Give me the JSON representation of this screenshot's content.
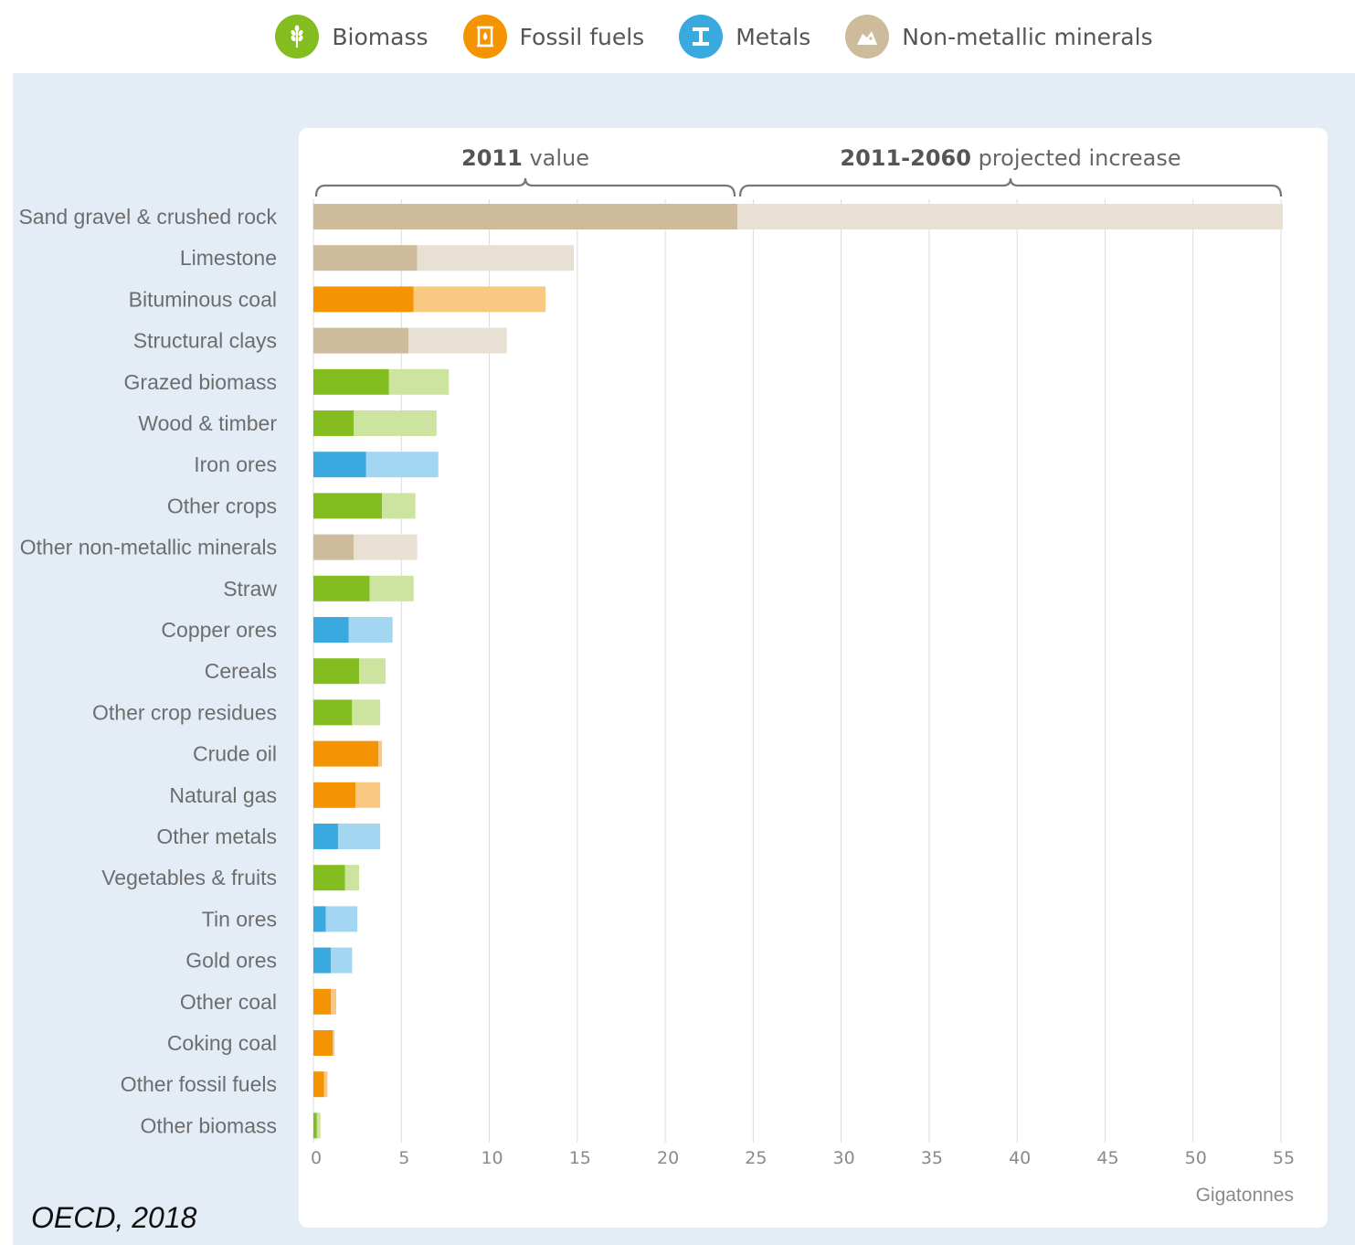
{
  "legend": [
    {
      "label": "Biomass",
      "color": "#84bd1f",
      "icon": "wheat-icon"
    },
    {
      "label": "Fossil fuels",
      "color": "#f49402",
      "icon": "oil-barrel-icon"
    },
    {
      "label": "Metals",
      "color": "#3aa9e0",
      "icon": "metal-beam-icon"
    },
    {
      "label": "Non-metallic minerals",
      "color": "#cdbb9c",
      "icon": "rocks-icon"
    }
  ],
  "source": "OECD, 2018",
  "chart_data": {
    "type": "bar",
    "orientation": "horizontal",
    "stacked": true,
    "brackets": [
      {
        "bold": "2011",
        "text": " value"
      },
      {
        "bold": "2011-2060",
        "text": " projected increase"
      }
    ],
    "xlabel": "Gigatonnes",
    "xlim": [
      0,
      55
    ],
    "xticks": [
      0,
      5,
      10,
      15,
      20,
      25,
      30,
      35,
      40,
      45,
      50,
      55
    ],
    "grid": true,
    "colors": {
      "Biomass": {
        "base": "#84bd1f",
        "increase": "#cde3a0"
      },
      "Fossil fuels": {
        "base": "#f49402",
        "increase": "#f9c981"
      },
      "Metals": {
        "base": "#3aa9e0",
        "increase": "#a3d6f1"
      },
      "Non-metallic minerals": {
        "base": "#cdbb9c",
        "increase": "#e8e0d2"
      }
    },
    "series_names": [
      "2011 value",
      "2011-2060 projected increase"
    ],
    "categories": [
      "Sand gravel & crushed rock",
      "Limestone",
      "Bituminous coal",
      "Structural clays",
      "Grazed biomass",
      "Wood & timber",
      "Iron ores",
      "Other crops",
      "Other non-metallic minerals",
      "Straw",
      "Copper ores",
      "Cereals",
      "Other crop residues",
      "Crude oil",
      "Natural gas",
      "Other metals",
      "Vegetables & fruits",
      "Tin ores",
      "Gold ores",
      "Other coal",
      "Coking coal",
      "Other fossil fuels",
      "Other biomass"
    ],
    "groups": [
      "Non-metallic minerals",
      "Non-metallic minerals",
      "Fossil fuels",
      "Non-metallic minerals",
      "Biomass",
      "Biomass",
      "Metals",
      "Biomass",
      "Non-metallic minerals",
      "Biomass",
      "Metals",
      "Biomass",
      "Biomass",
      "Fossil fuels",
      "Fossil fuels",
      "Metals",
      "Biomass",
      "Metals",
      "Metals",
      "Fossil fuels",
      "Fossil fuels",
      "Fossil fuels",
      "Biomass"
    ],
    "value_2011": [
      24.1,
      5.9,
      5.7,
      5.4,
      4.3,
      2.3,
      3.0,
      3.9,
      2.3,
      3.2,
      2.0,
      2.6,
      2.2,
      3.7,
      2.4,
      1.4,
      1.8,
      0.7,
      1.0,
      1.0,
      1.1,
      0.6,
      0.2
    ],
    "increase": [
      31.0,
      8.9,
      7.5,
      5.6,
      3.4,
      4.7,
      4.1,
      1.9,
      3.6,
      2.5,
      2.5,
      1.5,
      1.6,
      0.2,
      1.4,
      2.4,
      0.8,
      1.8,
      1.2,
      0.3,
      0.1,
      0.2,
      0.2
    ]
  }
}
